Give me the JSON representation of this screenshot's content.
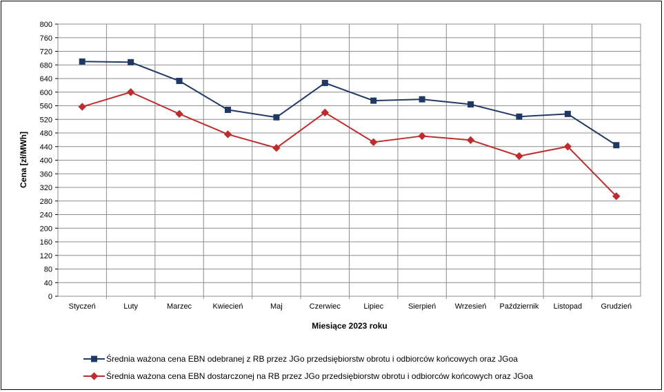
{
  "chart_data": {
    "type": "line",
    "xlabel": "Miesiące 2023  roku",
    "ylabel": "Cena [zł/MWh]",
    "ylim": [
      0,
      800
    ],
    "ytick_step": 40,
    "grid": true,
    "legend_position": "bottom",
    "categories": [
      "Styczeń",
      "Luty",
      "Marzec",
      "Kwiecień",
      "Maj",
      "Czerwiec",
      "Lipiec",
      "Sierpień",
      "Wrzesień",
      "Październik",
      "Listopad",
      "Grudzień"
    ],
    "series": [
      {
        "name": "Średnia ważona cena EBN odebranej z RB przez JGo przedsiębiorstw obrotu i odbiorców końcowych oraz JGoa",
        "color": "#1f3864",
        "marker": "square",
        "values": [
          690,
          688,
          633,
          548,
          526,
          627,
          575,
          579,
          564,
          528,
          536,
          444
        ]
      },
      {
        "name": "Średnia ważona cena EBN dostarczonej na RB przez JGo przedsiębiorstw obrotu i odbiorców końcowych oraz JGoa",
        "color": "#be2d2d",
        "marker": "diamond",
        "values": [
          557,
          600,
          536,
          476,
          436,
          540,
          453,
          471,
          459,
          412,
          440,
          294
        ]
      }
    ]
  }
}
